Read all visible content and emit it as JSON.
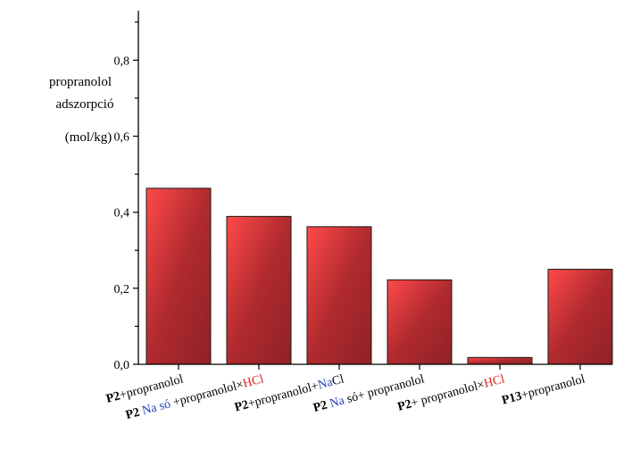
{
  "chart_data": {
    "type": "bar",
    "ylabel_lines": [
      "propranolol",
      "adszorpció",
      "(mol/kg)"
    ],
    "yticks": [
      "0,0",
      "0,2",
      "0,4",
      "0,6",
      "0,8"
    ],
    "ylim": [
      0,
      0.93
    ],
    "grid": false,
    "categories": [
      [
        {
          "t": "P2",
          "bold": true
        },
        {
          "t": "+propranolol"
        }
      ],
      [
        {
          "t": "P2",
          "bold": true
        },
        {
          "t": " Na só",
          "color": "#1f3fbf"
        },
        {
          "t": " +propranolol×"
        },
        {
          "t": "HCl",
          "color": "#e02020"
        }
      ],
      [
        {
          "t": "P2",
          "bold": true
        },
        {
          "t": "+propranolol+"
        },
        {
          "t": "Na",
          "color": "#1f3fbf"
        },
        {
          "t": "Cl"
        }
      ],
      [
        {
          "t": "P2",
          "bold": true
        },
        {
          "t": " Na",
          "color": "#1f3fbf"
        },
        {
          "t": " só+ propranolol"
        }
      ],
      [
        {
          "t": "P2",
          "bold": true
        },
        {
          "t": "+ propranolol×"
        },
        {
          "t": "HCl",
          "color": "#e02020"
        }
      ],
      [
        {
          "t": "P13",
          "bold": true
        },
        {
          "t": "+propranolol"
        }
      ]
    ],
    "values": [
      0.463,
      0.389,
      0.362,
      0.222,
      0.018,
      0.25
    ],
    "bar_colors": [
      "#ff4a4a",
      "#b02a2e",
      "#8e2226"
    ]
  }
}
